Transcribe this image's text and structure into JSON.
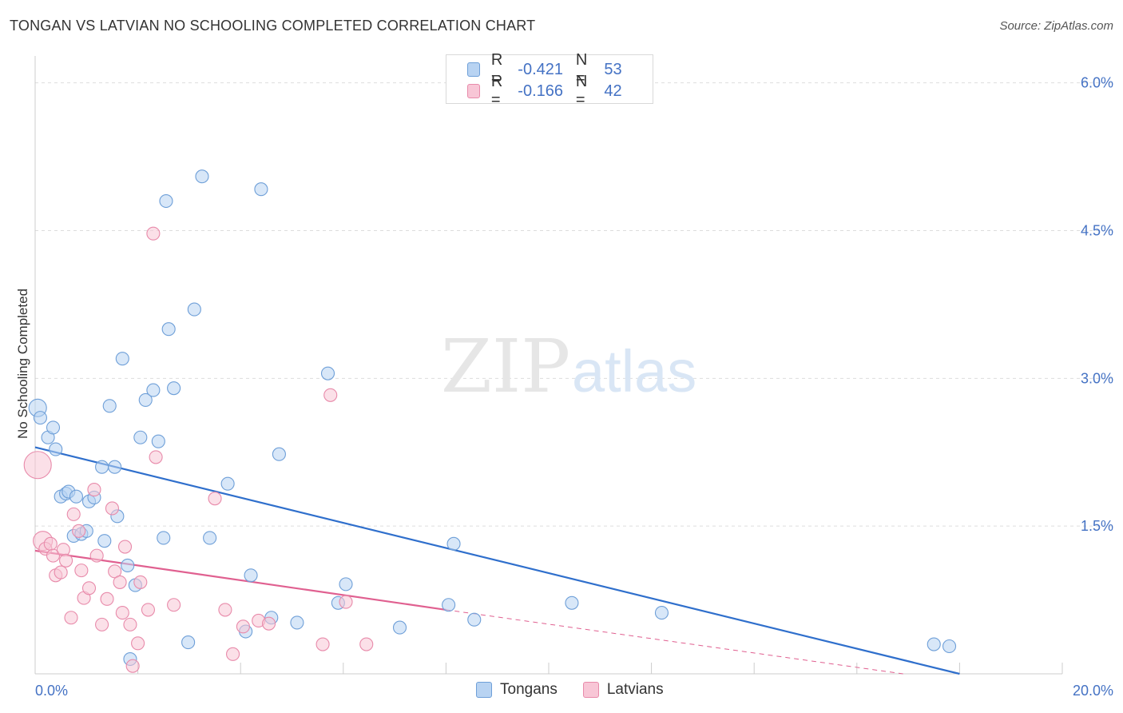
{
  "title": "TONGAN VS LATVIAN NO SCHOOLING COMPLETED CORRELATION CHART",
  "source": "Source: ZipAtlas.com",
  "watermark": {
    "zip": "ZIP",
    "atlas": "atlas"
  },
  "colors": {
    "tongan_fill": "#b8d3f2",
    "tongan_stroke": "#6e9fd8",
    "tongan_line": "#2f6fcc",
    "latvian_fill": "#f8c6d6",
    "latvian_stroke": "#e88aaa",
    "latvian_line": "#e06090",
    "axis_label": "#4472c4",
    "grid": "#dddddd"
  },
  "legend": {
    "r_label": "R =",
    "n_label": "N =",
    "rows": [
      {
        "series": "Tongans",
        "r": "-0.421",
        "n": "53"
      },
      {
        "series": "Latvians",
        "r": "-0.166",
        "n": "42"
      }
    ]
  },
  "chart_data": {
    "type": "scatter",
    "title": "TONGAN VS LATVIAN NO SCHOOLING COMPLETED CORRELATION CHART",
    "xlabel": "",
    "ylabel": "No Schooling Completed",
    "xlim": [
      0,
      20
    ],
    "ylim": [
      0,
      6.2
    ],
    "x_tick_labels": [
      "0.0%",
      "20.0%"
    ],
    "y_ticks": [
      1.5,
      3.0,
      4.5,
      6.0
    ],
    "y_tick_labels": [
      "1.5%",
      "3.0%",
      "4.5%",
      "6.0%"
    ],
    "grid": true,
    "legend_position": "top-center",
    "series": [
      {
        "name": "Tongans",
        "points": [
          [
            0.05,
            2.7
          ],
          [
            0.1,
            2.6
          ],
          [
            0.25,
            2.4
          ],
          [
            0.35,
            2.5
          ],
          [
            0.4,
            2.28
          ],
          [
            0.5,
            1.8
          ],
          [
            0.6,
            1.83
          ],
          [
            0.65,
            1.85
          ],
          [
            0.75,
            1.4
          ],
          [
            0.8,
            1.8
          ],
          [
            0.9,
            1.42
          ],
          [
            1.0,
            1.45
          ],
          [
            1.05,
            1.75
          ],
          [
            1.15,
            1.79
          ],
          [
            1.3,
            2.1
          ],
          [
            1.35,
            1.35
          ],
          [
            1.45,
            2.72
          ],
          [
            1.55,
            2.1
          ],
          [
            1.6,
            1.6
          ],
          [
            1.7,
            3.2
          ],
          [
            1.8,
            1.1
          ],
          [
            1.85,
            0.15
          ],
          [
            1.95,
            0.9
          ],
          [
            2.05,
            2.4
          ],
          [
            2.15,
            2.78
          ],
          [
            2.3,
            2.88
          ],
          [
            2.4,
            2.36
          ],
          [
            2.5,
            1.38
          ],
          [
            2.55,
            4.8
          ],
          [
            2.6,
            3.5
          ],
          [
            2.7,
            2.9
          ],
          [
            2.98,
            0.32
          ],
          [
            3.1,
            3.7
          ],
          [
            3.25,
            5.05
          ],
          [
            3.4,
            1.38
          ],
          [
            3.75,
            1.93
          ],
          [
            4.1,
            0.43
          ],
          [
            4.2,
            1.0
          ],
          [
            4.4,
            4.92
          ],
          [
            4.6,
            0.57
          ],
          [
            4.75,
            2.23
          ],
          [
            5.1,
            0.52
          ],
          [
            5.7,
            3.05
          ],
          [
            5.9,
            0.72
          ],
          [
            6.05,
            0.91
          ],
          [
            7.1,
            0.47
          ],
          [
            8.05,
            0.7
          ],
          [
            8.15,
            1.32
          ],
          [
            8.55,
            0.55
          ],
          [
            10.45,
            0.72
          ],
          [
            12.2,
            0.62
          ],
          [
            17.5,
            0.3
          ],
          [
            17.8,
            0.28
          ]
        ]
      },
      {
        "name": "Latvians",
        "points": [
          [
            0.05,
            2.12
          ],
          [
            0.15,
            1.35
          ],
          [
            0.2,
            1.27
          ],
          [
            0.3,
            1.32
          ],
          [
            0.35,
            1.2
          ],
          [
            0.4,
            1.0
          ],
          [
            0.5,
            1.03
          ],
          [
            0.55,
            1.26
          ],
          [
            0.6,
            1.15
          ],
          [
            0.7,
            0.57
          ],
          [
            0.75,
            1.62
          ],
          [
            0.85,
            1.45
          ],
          [
            0.9,
            1.05
          ],
          [
            0.95,
            0.77
          ],
          [
            1.05,
            0.87
          ],
          [
            1.15,
            1.87
          ],
          [
            1.2,
            1.2
          ],
          [
            1.3,
            0.5
          ],
          [
            1.4,
            0.76
          ],
          [
            1.5,
            1.68
          ],
          [
            1.55,
            1.04
          ],
          [
            1.65,
            0.93
          ],
          [
            1.7,
            0.62
          ],
          [
            1.75,
            1.29
          ],
          [
            1.85,
            0.5
          ],
          [
            1.9,
            0.08
          ],
          [
            2.0,
            0.31
          ],
          [
            2.05,
            0.93
          ],
          [
            2.2,
            0.65
          ],
          [
            2.3,
            4.47
          ],
          [
            2.35,
            2.2
          ],
          [
            2.7,
            0.7
          ],
          [
            3.5,
            1.78
          ],
          [
            3.7,
            0.65
          ],
          [
            3.85,
            0.2
          ],
          [
            4.05,
            0.48
          ],
          [
            4.35,
            0.54
          ],
          [
            4.55,
            0.51
          ],
          [
            5.6,
            0.3
          ],
          [
            5.75,
            2.83
          ],
          [
            6.05,
            0.73
          ],
          [
            6.45,
            0.3
          ]
        ]
      }
    ],
    "trendlines": [
      {
        "series": "Tongans",
        "x": [
          0,
          18
        ],
        "y": [
          2.3,
          0.0
        ],
        "style": "solid"
      },
      {
        "series": "Latvians",
        "x": [
          0,
          8
        ],
        "y": [
          1.25,
          0.65
        ],
        "style": "solid"
      },
      {
        "series": "Latvians",
        "x": [
          8,
          16.9
        ],
        "y": [
          0.65,
          0.0
        ],
        "style": "dashed"
      }
    ]
  }
}
